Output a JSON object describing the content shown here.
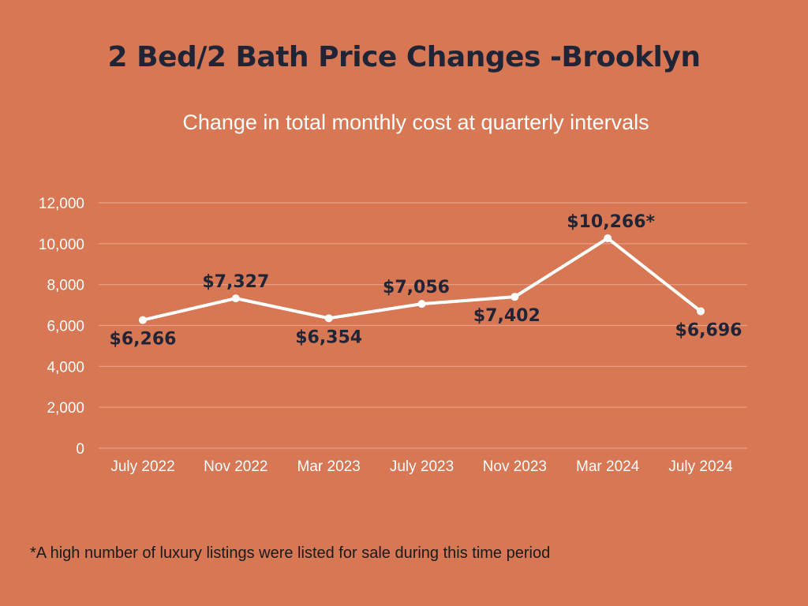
{
  "chart_data": {
    "type": "line",
    "title": "2 Bed/2 Bath Price Changes -Brooklyn",
    "subtitle": "Change in total monthly cost at quarterly intervals",
    "categories": [
      "July 2022",
      "Nov 2022",
      "Mar 2023",
      "July 2023",
      "Nov 2023",
      "Mar 2024",
      "July 2024"
    ],
    "values": [
      6266,
      7327,
      6354,
      7056,
      7402,
      10266,
      6696
    ],
    "data_labels": [
      "$6,266",
      "$7,327",
      "$6,354",
      "$7,056",
      "$7,402",
      "$10,266*",
      "$6,696"
    ],
    "label_positions": [
      "below",
      "above",
      "below",
      "above",
      "below",
      "above",
      "below"
    ],
    "ylim": [
      0,
      12000
    ],
    "yticks": [
      0,
      2000,
      4000,
      6000,
      8000,
      10000,
      12000
    ],
    "ytick_labels": [
      "0",
      "2,000",
      "4,000",
      "6,000",
      "8,000",
      "10,000",
      "12,000"
    ],
    "xlabel": "",
    "ylabel": "",
    "grid": true,
    "footnote": "*A high number of luxury listings were listed for sale during this time period"
  },
  "colors": {
    "background": "#d87754",
    "line": "#ffffff",
    "grid": "#e9a287",
    "label": "#1f2536"
  }
}
